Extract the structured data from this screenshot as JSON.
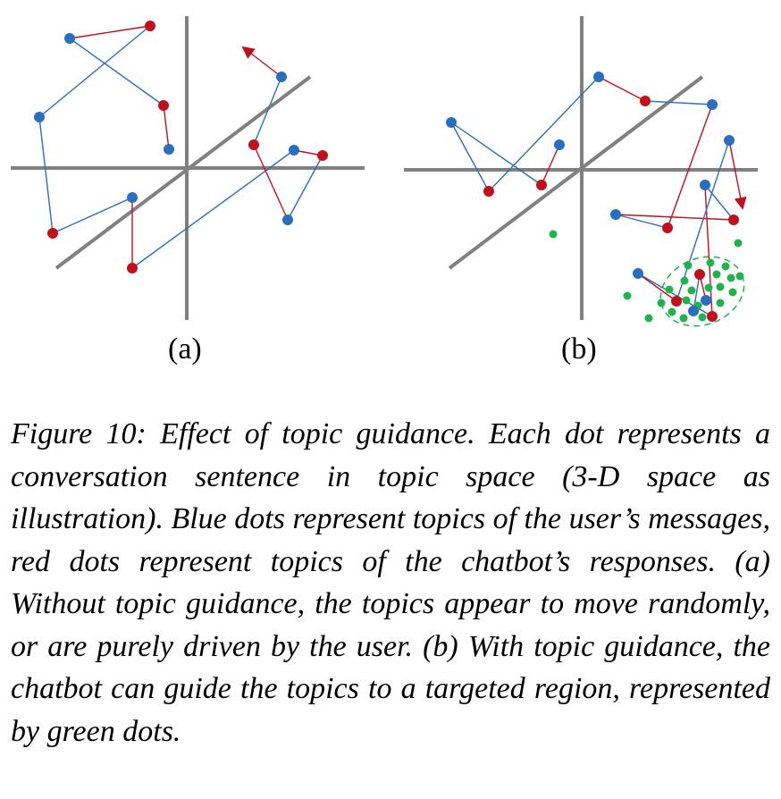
{
  "panel_a_label": "(a)",
  "panel_b_label": "(b)",
  "caption": "Figure 10: Effect of topic guidance. Each dot represents a conversation sentence in topic space (3-D space as illustration). Blue dots represent topics of the user’s messages, red dots represent topics of the chatbot’s responses. (a) Without topic guidance, the topics appear to move randomly, or are purely driven by the user. (b) With topic guidance, the chatbot can guide the topics to a targeted region, represented by green dots.",
  "colors": {
    "user_dot": "#2a6fbd",
    "bot_dot": "#c0101c",
    "target_dot": "#22b24c",
    "axis": "#808080"
  }
}
